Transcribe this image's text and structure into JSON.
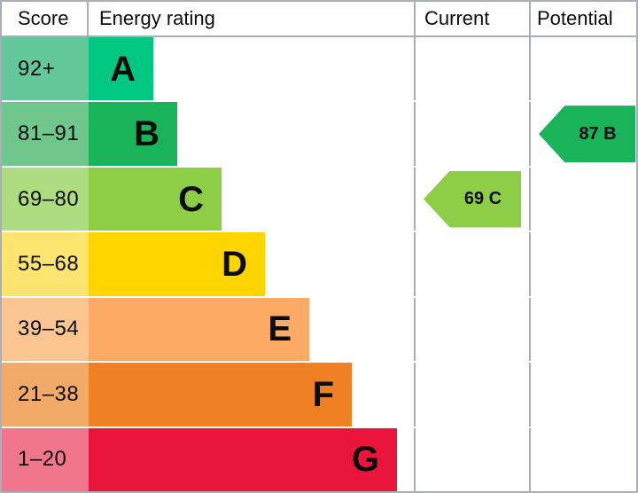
{
  "header": {
    "score": "Score",
    "energy_rating": "Energy rating",
    "current": "Current",
    "potential": "Potential"
  },
  "bands": [
    {
      "score": "92+",
      "letter": "A",
      "bar_color": "#00c781",
      "tint_color": "#62c899"
    },
    {
      "score": "81–91",
      "letter": "B",
      "bar_color": "#19b459",
      "tint_color": "#70c78e"
    },
    {
      "score": "69–80",
      "letter": "C",
      "bar_color": "#8dce46",
      "tint_color": "#aedc80"
    },
    {
      "score": "55–68",
      "letter": "D",
      "bar_color": "#ffd500",
      "tint_color": "#fce56f"
    },
    {
      "score": "39–54",
      "letter": "E",
      "bar_color": "#fcaa65",
      "tint_color": "#fbc592"
    },
    {
      "score": "21–38",
      "letter": "F",
      "bar_color": "#ef8023",
      "tint_color": "#f2aa68"
    },
    {
      "score": "1–20",
      "letter": "G",
      "bar_color": "#e9153b",
      "tint_color": "#f1758b"
    }
  ],
  "current": {
    "label": "69 C",
    "value": 69,
    "rating": "C",
    "color": "#8dce46"
  },
  "potential": {
    "label": "87 B",
    "value": 87,
    "rating": "B",
    "color": "#19b459"
  },
  "colors": {
    "grid_border": "#a9aeb8",
    "text": "#0b0c0c",
    "row_gap": "#ffffff"
  },
  "chart_data": {
    "type": "bar",
    "title": "Energy rating",
    "orientation": "horizontal",
    "categories": [
      "A",
      "B",
      "C",
      "D",
      "E",
      "F",
      "G"
    ],
    "score_ranges": [
      "92+",
      "81–91",
      "69–80",
      "55–68",
      "39–54",
      "21–38",
      "1–20"
    ],
    "band_colors": [
      "#00c781",
      "#19b459",
      "#8dce46",
      "#ffd500",
      "#fcaa65",
      "#ef8023",
      "#e9153b"
    ],
    "columns": [
      "Score",
      "Energy rating",
      "Current",
      "Potential"
    ],
    "markers": [
      {
        "column": "Current",
        "value": 69,
        "rating": "C",
        "row": "C",
        "color": "#8dce46"
      },
      {
        "column": "Potential",
        "value": 87,
        "rating": "B",
        "row": "B",
        "color": "#19b459"
      }
    ],
    "legend_position": "none",
    "grid": false
  }
}
